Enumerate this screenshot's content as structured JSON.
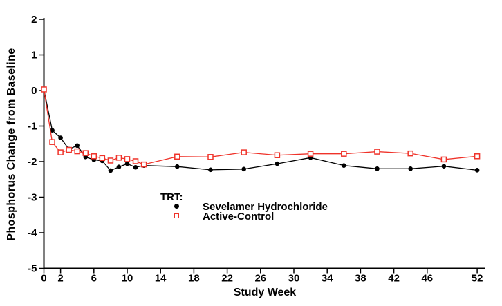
{
  "chart_data": {
    "type": "line",
    "title": "",
    "xlabel": "Study Week",
    "ylabel": "Phosphorus Change from Baseline",
    "xlim": [
      0,
      53
    ],
    "ylim": [
      -5,
      2
    ],
    "xticks": [
      0,
      2,
      6,
      10,
      14,
      18,
      22,
      26,
      30,
      34,
      38,
      42,
      46,
      52
    ],
    "yticks": [
      2,
      1,
      0,
      -1,
      -2,
      -3,
      -4,
      -5
    ],
    "grid": "off",
    "legend_position": "inside-lower-center",
    "legend_title": "TRT:",
    "x": [
      0,
      1,
      2,
      3,
      4,
      5,
      6,
      7,
      8,
      9,
      10,
      11,
      12,
      16,
      20,
      24,
      28,
      32,
      36,
      40,
      44,
      48,
      52
    ],
    "series": [
      {
        "name": "Sevelamer Hydrochloride",
        "color": "#000000",
        "marker": "filled-circle",
        "values": [
          0.03,
          -1.12,
          -1.33,
          -1.65,
          -1.55,
          -1.87,
          -1.95,
          -1.98,
          -2.25,
          -2.15,
          -2.06,
          -2.16,
          -2.11,
          -2.14,
          -2.23,
          -2.21,
          -2.06,
          -1.89,
          -2.11,
          -2.2,
          -2.2,
          -2.13,
          -2.24
        ]
      },
      {
        "name": "Active-Control",
        "color": "#ef3229",
        "marker": "open-square",
        "values": [
          0.03,
          -1.45,
          -1.74,
          -1.67,
          -1.71,
          -1.76,
          -1.85,
          -1.9,
          -1.97,
          -1.89,
          -1.93,
          -1.99,
          -2.08,
          -1.86,
          -1.87,
          -1.74,
          -1.82,
          -1.78,
          -1.78,
          -1.72,
          -1.77,
          -1.94,
          -1.85
        ]
      }
    ]
  },
  "colors": {
    "axis": "#000000",
    "background": "#ffffff",
    "sevelamer": "#000000",
    "active_control": "#ef3229"
  }
}
